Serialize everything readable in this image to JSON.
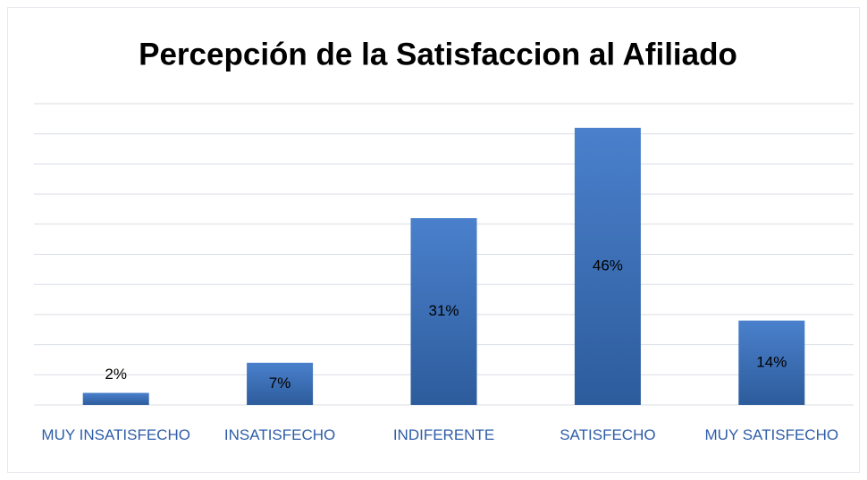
{
  "chart_data": {
    "type": "bar",
    "title": "Percepción de la Satisfaccion al Afiliado",
    "categories": [
      "MUY INSATISFECHO",
      "INSATISFECHO",
      "INDIFERENTE",
      "SATISFECHO",
      "MUY SATISFECHO"
    ],
    "values": [
      2,
      7,
      31,
      46,
      14
    ],
    "value_labels": [
      "2%",
      "7%",
      "31%",
      "46%",
      "14%"
    ],
    "color": "#3f73c0",
    "ylim": [
      0,
      50
    ],
    "yticks": [
      0,
      5,
      10,
      15,
      20,
      25,
      30,
      35,
      40,
      45,
      50
    ],
    "ytick_labels": false,
    "grid": true
  }
}
